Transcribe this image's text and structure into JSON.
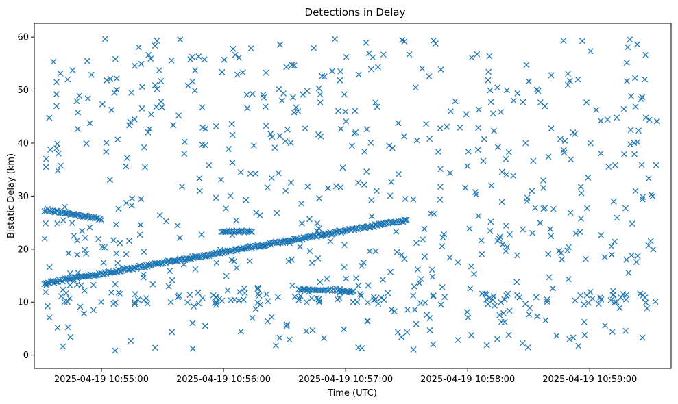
{
  "chart_data": {
    "type": "scatter",
    "title": "Detections in Delay",
    "xlabel": "Time (UTC)",
    "ylabel": "Bistatic Delay (km)",
    "marker": "x",
    "color": "#1f77b4",
    "x_unit": "timestamp",
    "xlim": [
      "2025-04-19 10:54:27",
      "2025-04-19 10:59:40"
    ],
    "ylim": [
      -2.5,
      62.6
    ],
    "x_ticks": [
      "2025-04-19 10:55:00",
      "2025-04-19 10:56:00",
      "2025-04-19 10:57:00",
      "2025-04-19 10:58:00",
      "2025-04-19 10:59:00"
    ],
    "y_ticks": [
      0,
      10,
      20,
      30,
      40,
      50,
      60
    ],
    "grid": false,
    "legend": "none",
    "start_time": "2025-04-19 10:54:32",
    "end_time": "2025-04-19 10:59:34",
    "track_a": {
      "start_time": "2025-04-19 10:54:32",
      "end_time": "2025-04-19 10:57:30",
      "start_delay_km": 13.5,
      "end_delay_km": 25.5,
      "count": 300
    },
    "track_b": {
      "start_time": "2025-04-19 10:54:33",
      "end_time": "2025-04-19 10:55:00",
      "start_delay_km": 27.4,
      "end_delay_km": 25.6,
      "count": 45
    },
    "track_c": {
      "start_time": "2025-04-19 10:55:59",
      "end_time": "2025-04-19 10:56:14",
      "delay_km": 23.3,
      "count": 25
    },
    "track_d": {
      "start_time": "2025-04-19 10:56:37",
      "end_time": "2025-04-19 10:56:57",
      "delay_km": 12.3,
      "count": 28
    },
    "track_e": {
      "start_time": "2025-04-19 10:56:57",
      "end_time": "2025-04-19 10:57:04",
      "delay_km": 12.0,
      "count": 14
    },
    "noise_points": {
      "count": 720,
      "delay_range_km": [
        0.5,
        60
      ]
    }
  }
}
